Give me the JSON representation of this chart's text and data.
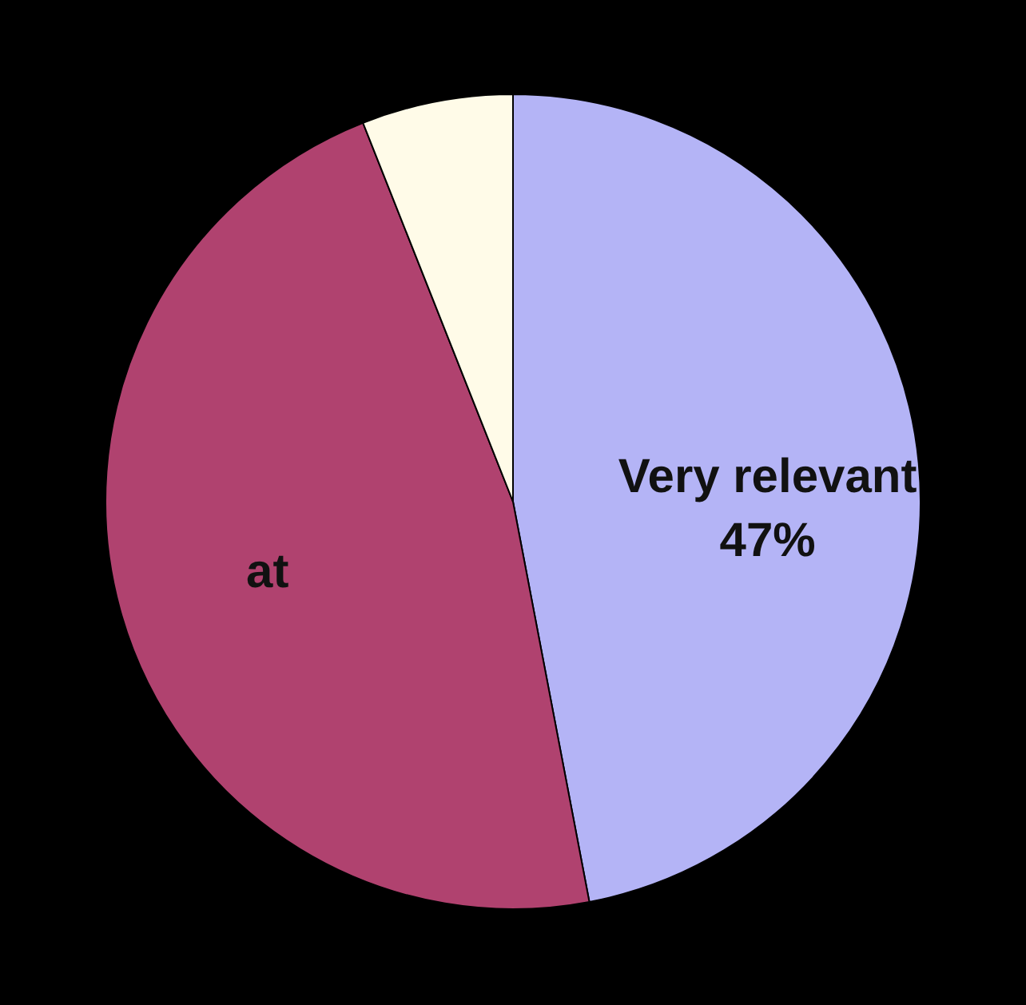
{
  "chart_data": {
    "type": "pie",
    "categories": [
      "Very relevant",
      "at",
      null
    ],
    "values": [
      47,
      47,
      6
    ],
    "colors": [
      "#b4b4f6",
      "#b0426f",
      "#fffbe8"
    ],
    "value_labels": [
      "47%",
      null,
      null
    ]
  }
}
